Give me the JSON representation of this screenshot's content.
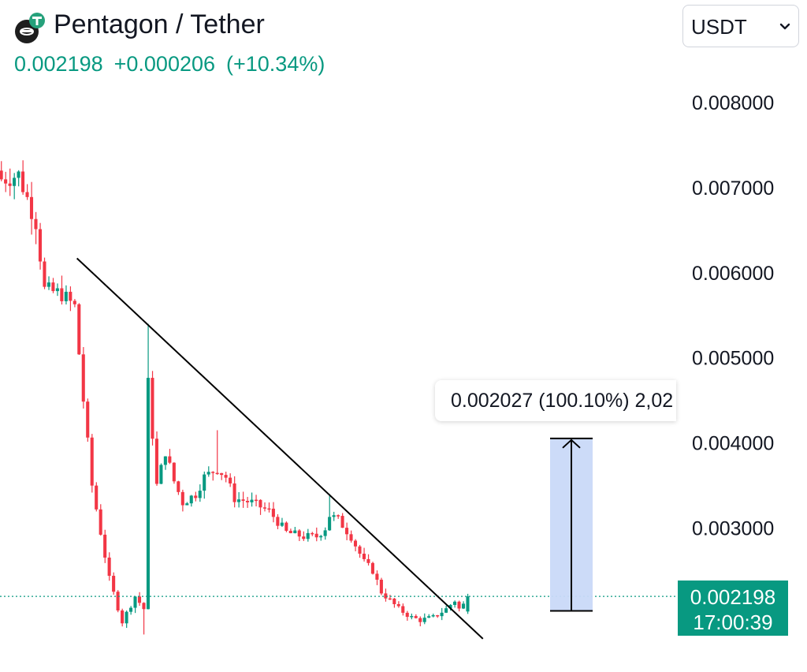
{
  "header": {
    "title": "Pentagon / Tether",
    "price": "0.002198",
    "change": "+0.000206",
    "change_pct": "(+10.34%)",
    "logo_icon": "tether-token-icon"
  },
  "currency_select": {
    "value": "USDT",
    "icon": "chevron-down-icon"
  },
  "colors": {
    "up": "#089981",
    "down": "#F23645",
    "measure_fill": "#C9D9F8",
    "trendline": "#000000"
  },
  "measure": {
    "label": "0.002027 (100.10%) 2,02",
    "from": 0.002027,
    "to": 0.004054
  },
  "last_price_label": {
    "price": "0.002198",
    "countdown": "17:00:39"
  },
  "chart_data": {
    "type": "candlestick",
    "title": "Pentagon / Tether",
    "ylim": [
      0.0017,
      0.0086
    ],
    "y_ticks": [
      "0.008000",
      "0.007000",
      "0.006000",
      "0.005000",
      "0.004000",
      "0.003000"
    ],
    "y_tick_values": [
      0.008,
      0.007,
      0.006,
      0.005,
      0.004,
      0.003
    ],
    "last_price": 0.002198,
    "trendline": {
      "from": [
        17,
        0.00617
      ],
      "to": [
        110,
        0.0017
      ]
    },
    "path": [
      [
        0,
        0.0071
      ],
      [
        4,
        0.00715
      ],
      [
        8,
        0.0066
      ],
      [
        10,
        0.0058
      ],
      [
        14,
        0.00575
      ],
      [
        17,
        0.0056
      ],
      [
        19,
        0.0045
      ],
      [
        21,
        0.0035
      ],
      [
        25,
        0.0024
      ],
      [
        28,
        0.0019
      ],
      [
        31,
        0.0022
      ],
      [
        33,
        0.00205
      ],
      [
        34,
        0.0047
      ],
      [
        36,
        0.0035
      ],
      [
        38,
        0.0039
      ],
      [
        40,
        0.00355
      ],
      [
        42,
        0.0033
      ],
      [
        45,
        0.0034
      ],
      [
        47,
        0.0036
      ],
      [
        50,
        0.0037
      ],
      [
        52,
        0.0036
      ],
      [
        54,
        0.00335
      ],
      [
        58,
        0.0033
      ],
      [
        62,
        0.0032
      ],
      [
        66,
        0.00295
      ],
      [
        70,
        0.0029
      ],
      [
        73,
        0.0029
      ],
      [
        75,
        0.003
      ],
      [
        76,
        0.00315
      ],
      [
        78,
        0.0031
      ],
      [
        81,
        0.0029
      ],
      [
        84,
        0.0026
      ],
      [
        86,
        0.0025
      ],
      [
        88,
        0.00225
      ],
      [
        90,
        0.00215
      ],
      [
        92,
        0.00205
      ],
      [
        95,
        0.00195
      ],
      [
        97,
        0.00192
      ],
      [
        100,
        0.00195
      ],
      [
        103,
        0.00205
      ],
      [
        105,
        0.00215
      ],
      [
        106,
        0.00205
      ],
      [
        107,
        0.0021
      ],
      [
        108,
        0.00219
      ]
    ],
    "spikes": [
      {
        "x": 34,
        "high": 0.0054
      },
      {
        "x": 50,
        "high": 0.00415
      },
      {
        "x": 76,
        "high": 0.0034
      }
    ]
  }
}
